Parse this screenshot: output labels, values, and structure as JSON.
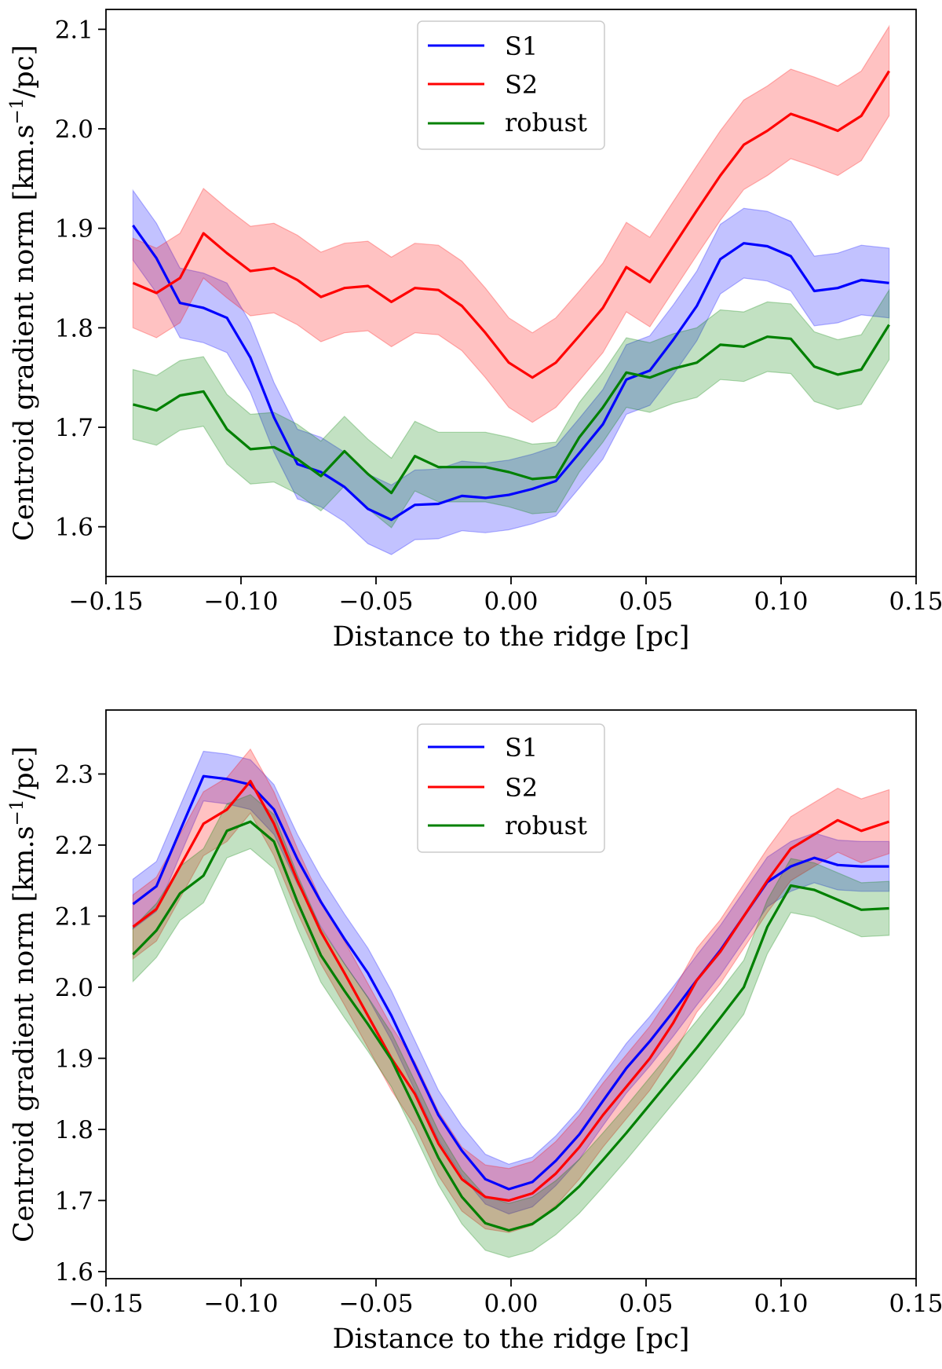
{
  "chart_data": [
    {
      "type": "line",
      "panel": "top",
      "xlabel": "Distance to the ridge [pc]",
      "ylabel_main": "Centroid gradient norm [km.s",
      "ylabel_sup": "−1",
      "ylabel_tail": "/pc]",
      "xlim": [
        -0.15,
        0.15
      ],
      "ylim": [
        1.55,
        2.12
      ],
      "xticks": [
        -0.15,
        -0.1,
        -0.05,
        0.0,
        0.05,
        0.1,
        0.15
      ],
      "xtick_labels": [
        "−0.15",
        "−0.10",
        "−0.05",
        "0.00",
        "0.05",
        "0.10",
        "0.15"
      ],
      "yticks": [
        1.6,
        1.7,
        1.8,
        1.9,
        2.0,
        2.1
      ],
      "ytick_labels": [
        "1.6",
        "1.7",
        "1.8",
        "1.9",
        "2.0",
        "2.1"
      ],
      "legend_position": "top-center",
      "x": [
        -0.14,
        -0.1313,
        -0.1226,
        -0.1139,
        -0.1052,
        -0.0965,
        -0.0878,
        -0.0791,
        -0.0704,
        -0.0617,
        -0.053,
        -0.0443,
        -0.0356,
        -0.0269,
        -0.0182,
        -0.0095,
        -0.0008,
        0.0079,
        0.0166,
        0.0253,
        0.034,
        0.0427,
        0.0514,
        0.0601,
        0.0688,
        0.0775,
        0.0862,
        0.0949,
        0.1036,
        0.1123,
        0.121,
        0.1297,
        0.14
      ],
      "series": [
        {
          "name": "S1",
          "color": "#0000ff",
          "values": [
            1.903,
            1.87,
            1.825,
            1.82,
            1.81,
            1.77,
            1.71,
            1.663,
            1.655,
            1.64,
            1.618,
            1.607,
            1.622,
            1.623,
            1.631,
            1.629,
            1.632,
            1.638,
            1.646,
            1.674,
            1.703,
            1.748,
            1.757,
            1.788,
            1.822,
            1.869,
            1.885,
            1.882,
            1.872,
            1.837,
            1.84,
            1.848,
            1.845
          ],
          "band": 0.035
        },
        {
          "name": "S2",
          "color": "#ff0000",
          "values": [
            1.845,
            1.835,
            1.85,
            1.895,
            1.875,
            1.857,
            1.86,
            1.848,
            1.831,
            1.84,
            1.842,
            1.826,
            1.84,
            1.838,
            1.822,
            1.795,
            1.765,
            1.75,
            1.765,
            1.792,
            1.82,
            1.861,
            1.846,
            1.882,
            1.918,
            1.953,
            1.984,
            1.998,
            2.015,
            2.007,
            1.998,
            2.013,
            2.058
          ],
          "band": 0.045
        },
        {
          "name": "robust",
          "color": "#008000",
          "values": [
            1.723,
            1.717,
            1.732,
            1.736,
            1.698,
            1.678,
            1.68,
            1.668,
            1.651,
            1.676,
            1.653,
            1.634,
            1.671,
            1.66,
            1.66,
            1.66,
            1.655,
            1.648,
            1.65,
            1.69,
            1.72,
            1.755,
            1.75,
            1.759,
            1.765,
            1.783,
            1.781,
            1.791,
            1.789,
            1.761,
            1.753,
            1.758,
            1.803
          ],
          "band": 0.035
        }
      ]
    },
    {
      "type": "line",
      "panel": "bottom",
      "xlabel": "Distance to the ridge [pc]",
      "ylabel_main": "Centroid gradient norm [km.s",
      "ylabel_sup": "−1",
      "ylabel_tail": "/pc]",
      "xlim": [
        -0.15,
        0.15
      ],
      "ylim": [
        1.59,
        2.39
      ],
      "xticks": [
        -0.15,
        -0.1,
        -0.05,
        0.0,
        0.05,
        0.1,
        0.15
      ],
      "xtick_labels": [
        "−0.15",
        "−0.10",
        "−0.05",
        "0.00",
        "0.05",
        "0.10",
        "0.15"
      ],
      "yticks": [
        1.6,
        1.7,
        1.8,
        1.9,
        2.0,
        2.1,
        2.2,
        2.3
      ],
      "ytick_labels": [
        "1.6",
        "1.7",
        "1.8",
        "1.9",
        "2.0",
        "2.1",
        "2.2",
        "2.3"
      ],
      "legend_position": "top-center",
      "x": [
        -0.14,
        -0.1313,
        -0.1226,
        -0.1139,
        -0.1052,
        -0.0965,
        -0.0878,
        -0.0791,
        -0.0704,
        -0.0617,
        -0.053,
        -0.0443,
        -0.0356,
        -0.0269,
        -0.0182,
        -0.0095,
        -0.0008,
        0.0079,
        0.0166,
        0.0253,
        0.034,
        0.0427,
        0.0514,
        0.0601,
        0.0688,
        0.0775,
        0.0862,
        0.0949,
        0.1036,
        0.1123,
        0.121,
        0.1297,
        0.14
      ],
      "series": [
        {
          "name": "S1",
          "color": "#0000ff",
          "values": [
            2.117,
            2.142,
            2.22,
            2.297,
            2.293,
            2.285,
            2.25,
            2.18,
            2.12,
            2.068,
            2.02,
            1.96,
            1.89,
            1.82,
            1.77,
            1.73,
            1.716,
            1.726,
            1.756,
            1.793,
            1.84,
            1.886,
            1.924,
            1.966,
            2.01,
            2.052,
            2.1,
            2.148,
            2.17,
            2.182,
            2.172,
            2.17,
            2.17
          ],
          "band": 0.035
        },
        {
          "name": "S2",
          "color": "#ff0000",
          "values": [
            2.085,
            2.11,
            2.17,
            2.23,
            2.25,
            2.29,
            2.23,
            2.15,
            2.078,
            2.02,
            1.96,
            1.9,
            1.85,
            1.78,
            1.73,
            1.705,
            1.7,
            1.71,
            1.738,
            1.775,
            1.82,
            1.86,
            1.9,
            1.95,
            2.01,
            2.05,
            2.1,
            2.15,
            2.195,
            2.215,
            2.235,
            2.22,
            2.233
          ],
          "band": 0.045
        },
        {
          "name": "robust",
          "color": "#008000",
          "values": [
            2.046,
            2.08,
            2.132,
            2.157,
            2.22,
            2.233,
            2.205,
            2.12,
            2.045,
            1.995,
            1.948,
            1.898,
            1.83,
            1.76,
            1.705,
            1.668,
            1.658,
            1.667,
            1.69,
            1.72,
            1.757,
            1.795,
            1.835,
            1.875,
            1.915,
            1.957,
            2.0,
            2.085,
            2.143,
            2.137,
            2.123,
            2.109,
            2.111
          ],
          "band": 0.038
        }
      ]
    }
  ]
}
